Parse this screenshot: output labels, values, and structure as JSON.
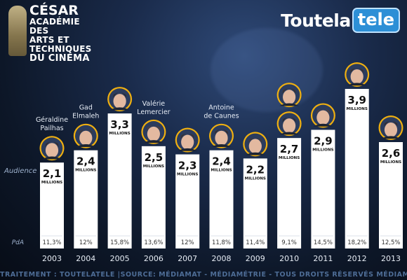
{
  "logos": {
    "cesar": [
      "CÉSAR",
      "ACADÉMIE DES",
      "ARTS ET TECHNIQUES",
      "DU CINÉMA"
    ],
    "brand_main": "Toutela",
    "brand_box": "tele"
  },
  "row_labels": {
    "audience": "Audience",
    "pda": "PdA"
  },
  "footer": "TRAITEMENT : TOUTELATELE |SOURCE: MÉDIAMAT - MÉDIAMÉTRIE - TOUS DROITS RÉSERVÉS MÉDIAMÉTRIE",
  "colors": {
    "bar": "#ffffff",
    "ring": "#f0b010",
    "background": "#13223d",
    "text": "#111111"
  },
  "chart_data": {
    "type": "bar",
    "categories": [
      "2003",
      "2004",
      "2005",
      "2006",
      "2007",
      "2008",
      "2009",
      "2010",
      "2011",
      "2012",
      "2013"
    ],
    "values": [
      2.1,
      2.4,
      3.3,
      2.5,
      2.3,
      2.4,
      2.2,
      2.7,
      2.9,
      3.9,
      2.6
    ],
    "value_labels": [
      "2,1",
      "2,4",
      "3,3",
      "2,5",
      "2,3",
      "2,4",
      "2,2",
      "2,7",
      "2,9",
      "3,9",
      "2,6"
    ],
    "unit_label": "MILLIONS",
    "pda": [
      "11,3%",
      "12%",
      "15,8%",
      "13,6%",
      "12%",
      "11,8%",
      "11,4%",
      "9,1%",
      "14,5%",
      "18,2%",
      "12,5%"
    ],
    "presenters": [
      {
        "name": [
          "Géraldine",
          "Pailhas"
        ],
        "icon": "host-portrait-icon"
      },
      {
        "name": [
          "Gad",
          "Elmaleh"
        ],
        "icon": "host-portrait-icon"
      },
      {
        "name": [],
        "icon": "host-portrait-icon"
      },
      {
        "name": [
          "Valérie",
          "Lemercier"
        ],
        "icon": "host-portrait-icon"
      },
      {
        "name": [],
        "icon": "host-portrait-icon"
      },
      {
        "name": [
          "Antoine",
          "de Caunes"
        ],
        "icon": "host-portrait-icon"
      },
      {
        "name": [],
        "icon": "host-portrait-icon"
      },
      {
        "name": [],
        "icon": "host-portrait-icon",
        "extra_portrait": true
      },
      {
        "name": [],
        "icon": "host-portrait-icon"
      },
      {
        "name": [],
        "icon": "host-portrait-icon"
      },
      {
        "name": [],
        "icon": "host-portrait-icon"
      }
    ],
    "ylabel": "Audience",
    "xlabel": "",
    "ylim": [
      0,
      3.9
    ]
  }
}
